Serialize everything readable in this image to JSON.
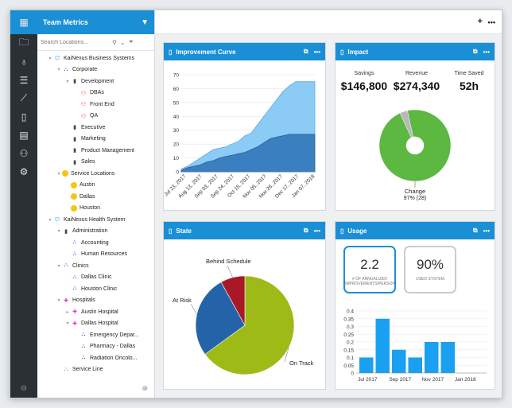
{
  "sidebar_tree": {
    "title": "Team Metrics",
    "search_placeholder": "Search Locations...",
    "nodes": [
      {
        "label": "KaiNexus Business Systems"
      },
      {
        "label": "Corporate"
      },
      {
        "label": "Development"
      },
      {
        "label": "DBAs"
      },
      {
        "label": "Front End"
      },
      {
        "label": "QA"
      },
      {
        "label": "Executive"
      },
      {
        "label": "Marketing"
      },
      {
        "label": "Product Management"
      },
      {
        "label": "Sales"
      },
      {
        "label": "Service Locations"
      },
      {
        "label": "Austin"
      },
      {
        "label": "Dallas"
      },
      {
        "label": "Houston"
      },
      {
        "label": "KaiNexus Health System"
      },
      {
        "label": "Administration"
      },
      {
        "label": "Accounting"
      },
      {
        "label": "Human Resources"
      },
      {
        "label": "Clinics"
      },
      {
        "label": "Dallas Clinic"
      },
      {
        "label": "Houston Clinic"
      },
      {
        "label": "Hospitals"
      },
      {
        "label": "Austin Hospital"
      },
      {
        "label": "Dallas Hospital"
      },
      {
        "label": "Emergency Depar..."
      },
      {
        "label": "Pharmacy - Dallas"
      },
      {
        "label": "Radiation Oncolo..."
      },
      {
        "label": "Service Line"
      }
    ]
  },
  "panels": {
    "improvement": {
      "title": "Improvement Curve"
    },
    "impact": {
      "title": "Impact",
      "metrics": [
        {
          "label": "Savings",
          "value": "$146,800"
        },
        {
          "label": "Revenue",
          "value": "$274,340"
        },
        {
          "label": "Time Saved",
          "value": "52h"
        }
      ]
    },
    "state": {
      "title": "State"
    },
    "usage": {
      "title": "Usage",
      "boxes": [
        {
          "value": "2.2",
          "label": "# of annualized improvements/person"
        },
        {
          "value": "90%",
          "label": "Used system"
        }
      ]
    }
  },
  "chart_data": [
    {
      "type": "area",
      "ylim": [
        0,
        70
      ],
      "yticks": [
        0,
        10,
        20,
        30,
        40,
        50,
        60,
        70
      ],
      "x_labels": [
        "Jul 23, 2017",
        "Aug 13, 2017",
        "Sep 03, 2017",
        "Sep 24, 2017",
        "Oct 15, 2017",
        "Nov 05, 2017",
        "Nov 26, 2017",
        "Dec 17, 2017",
        "Jan 07, 2018"
      ],
      "series": [
        {
          "values": [
            2,
            4,
            7,
            10,
            13,
            16,
            17,
            18,
            20,
            22,
            26,
            28,
            34,
            40,
            46,
            52,
            58,
            62,
            65,
            65,
            65,
            65
          ],
          "color": "#8ccbf5"
        },
        {
          "values": [
            1,
            3,
            4,
            5,
            7,
            8,
            10,
            11,
            12,
            13,
            14,
            16,
            18,
            21,
            24,
            25,
            26,
            27,
            27,
            27,
            27,
            27
          ],
          "color": "#3a7fc0"
        }
      ]
    },
    {
      "type": "pie",
      "slices": [
        {
          "label": "Change",
          "value": 28,
          "percent": "97% (28)",
          "color": "#5cb840"
        },
        {
          "label": "",
          "value": 1,
          "color": "#b8b8b8"
        }
      ],
      "donut": true
    },
    {
      "type": "pie",
      "slices": [
        {
          "label": "On Track",
          "value": 65,
          "color": "#9dba17"
        },
        {
          "label": "At Risk",
          "value": 27,
          "color": "#2563a8"
        },
        {
          "label": "Behind Schedule",
          "value": 8,
          "color": "#a81826"
        }
      ]
    },
    {
      "type": "bar",
      "ylim": [
        0,
        0.4
      ],
      "yticks": [
        0,
        0.05,
        0.1,
        0.15,
        0.2,
        0.25,
        0.3,
        0.35,
        0.4
      ],
      "x_labels": [
        "Jul 2017",
        "Sep 2017",
        "Nov 2017",
        "Jan 2018"
      ],
      "values": [
        0.1,
        0.35,
        0.15,
        0.1,
        0.2,
        0.2,
        0,
        0
      ],
      "color": "#19a0f0"
    }
  ]
}
